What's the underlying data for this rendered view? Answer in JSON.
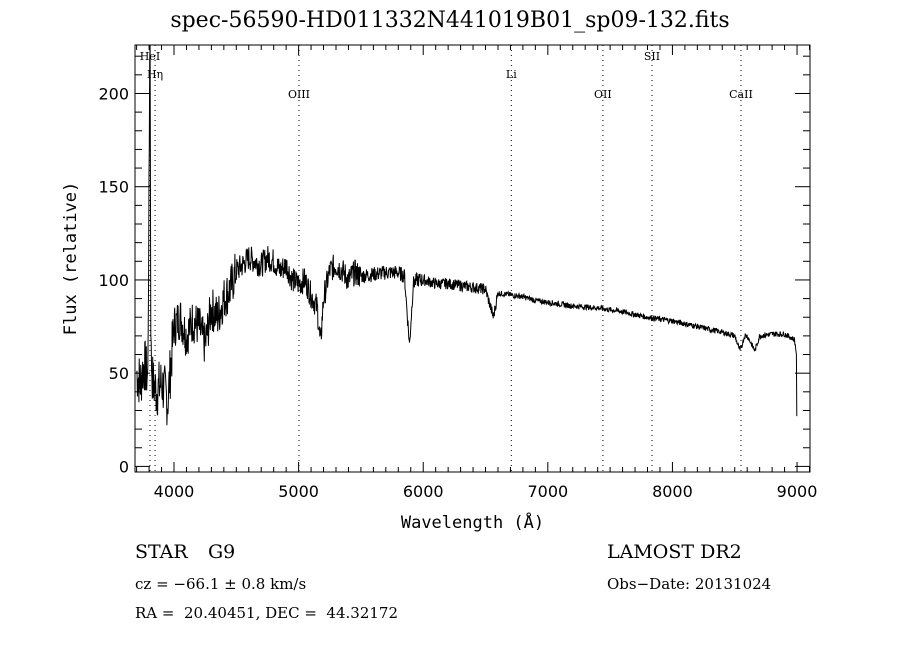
{
  "chart_data": {
    "type": "line",
    "title": "spec-56590-HD011332N441019B01_sp09-132.fits",
    "xlabel": "Wavelength (Å)",
    "ylabel": "Flux (relative)",
    "xlim": [
      3687,
      9104
    ],
    "ylim": [
      -3,
      226
    ],
    "xticks": [
      4000,
      5000,
      6000,
      7000,
      8000,
      9000
    ],
    "yticks": [
      0,
      50,
      100,
      150,
      200
    ],
    "grid": false,
    "series": [
      {
        "name": "flux",
        "x": [
          3700,
          3730,
          3760,
          3790,
          3807,
          3815,
          3830,
          3860,
          3900,
          3950,
          4000,
          4050,
          4100,
          4150,
          4200,
          4250,
          4300,
          4350,
          4400,
          4450,
          4500,
          4550,
          4600,
          4650,
          4700,
          4750,
          4800,
          4850,
          4900,
          4950,
          5000,
          5050,
          5100,
          5150,
          5175,
          5200,
          5250,
          5300,
          5350,
          5400,
          5450,
          5500,
          5600,
          5700,
          5800,
          5850,
          5890,
          5920,
          5950,
          6000,
          6100,
          6200,
          6300,
          6400,
          6500,
          6563,
          6600,
          6700,
          6800,
          6900,
          7000,
          7200,
          7400,
          7600,
          7800,
          8000,
          8200,
          8400,
          8500,
          8542,
          8580,
          8600,
          8662,
          8700,
          8800,
          8900,
          8980,
          8995,
          9000
        ],
        "y": [
          50,
          45,
          55,
          48,
          226,
          60,
          45,
          40,
          45,
          35,
          75,
          80,
          70,
          78,
          75,
          65,
          85,
          80,
          90,
          95,
          105,
          108,
          112,
          110,
          108,
          112,
          110,
          105,
          108,
          100,
          98,
          100,
          92,
          85,
          65,
          90,
          105,
          108,
          105,
          100,
          104,
          102,
          103,
          104,
          104,
          102,
          65,
          98,
          100,
          100,
          98,
          98,
          97,
          96,
          95,
          80,
          93,
          92,
          91,
          89,
          88,
          86,
          85,
          83,
          80,
          78,
          75,
          72,
          70,
          62,
          70,
          70,
          62,
          70,
          71,
          71,
          68,
          60,
          5
        ]
      }
    ],
    "line_markers": [
      {
        "label": "HeI",
        "x": 3807
      },
      {
        "label": "Hη",
        "x": 3848
      },
      {
        "label": "OIII",
        "x": 5003
      },
      {
        "label": "Li",
        "x": 6707
      },
      {
        "label": "OII",
        "x": 7442
      },
      {
        "label": "SII",
        "x": 7836
      },
      {
        "label": "CaII",
        "x": 8550
      }
    ]
  },
  "info": {
    "class": "STAR",
    "subclass": "G9",
    "survey": "LAMOST DR2",
    "cz": "cz = −66.1 ± 0.8 km/s",
    "obs_date": "Obs−Date: 20131024",
    "coords": "RA =  20.40451, DEC =  44.32172"
  }
}
